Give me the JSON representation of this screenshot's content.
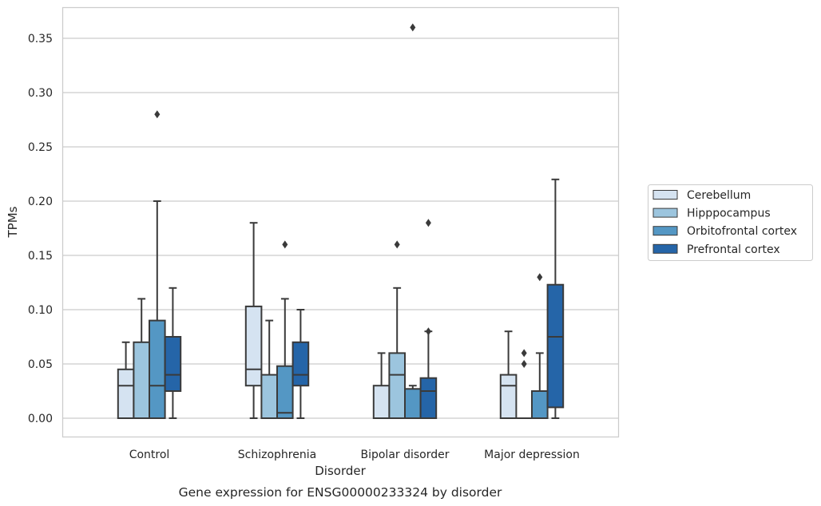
{
  "caption": "Gene expression for ENSG00000233324 by disorder",
  "chart_data": {
    "type": "boxplot",
    "xlabel": "Disorder",
    "ylabel": "TPMs",
    "ylim": [
      -0.018,
      0.378
    ],
    "yticks": [
      0.0,
      0.05,
      0.1,
      0.15,
      0.2,
      0.25,
      0.3,
      0.35
    ],
    "ytick_labels": [
      "0.00",
      "0.05",
      "0.10",
      "0.15",
      "0.20",
      "0.25",
      "0.30",
      "0.35"
    ],
    "grid": "horizontal",
    "legend_position": "right",
    "categories": [
      "Control",
      "Schizophrenia",
      "Bipolar disorder",
      "Major depression"
    ],
    "series": [
      {
        "name": "Cerebellum",
        "color": "#d5e3f1",
        "boxes": [
          {
            "whislo": 0.0,
            "q1": 0.0,
            "med": 0.03,
            "q3": 0.045,
            "whishi": 0.07,
            "fliers": []
          },
          {
            "whislo": 0.0,
            "q1": 0.03,
            "med": 0.045,
            "q3": 0.103,
            "whishi": 0.18,
            "fliers": []
          },
          {
            "whislo": 0.0,
            "q1": 0.0,
            "med": 0.0,
            "q3": 0.03,
            "whishi": 0.06,
            "fliers": []
          },
          {
            "whislo": 0.0,
            "q1": 0.0,
            "med": 0.03,
            "q3": 0.04,
            "whishi": 0.08,
            "fliers": []
          }
        ]
      },
      {
        "name": "Hipppocampus",
        "color": "#9cc5de",
        "boxes": [
          {
            "whislo": 0.0,
            "q1": 0.0,
            "med": 0.0,
            "q3": 0.07,
            "whishi": 0.11,
            "fliers": []
          },
          {
            "whislo": 0.0,
            "q1": 0.0,
            "med": 0.0,
            "q3": 0.04,
            "whishi": 0.09,
            "fliers": []
          },
          {
            "whislo": 0.0,
            "q1": 0.0,
            "med": 0.04,
            "q3": 0.06,
            "whishi": 0.12,
            "fliers": [
              0.16
            ]
          },
          {
            "whislo": 0.0,
            "q1": 0.0,
            "med": 0.0,
            "q3": 0.0,
            "whishi": 0.0,
            "fliers": [
              0.05,
              0.06
            ]
          }
        ]
      },
      {
        "name": "Orbitofrontal cortex",
        "color": "#5497c4",
        "boxes": [
          {
            "whislo": 0.0,
            "q1": 0.0,
            "med": 0.03,
            "q3": 0.09,
            "whishi": 0.2,
            "fliers": [
              0.28
            ]
          },
          {
            "whislo": 0.0,
            "q1": 0.0,
            "med": 0.005,
            "q3": 0.048,
            "whishi": 0.11,
            "fliers": [
              0.16
            ]
          },
          {
            "whislo": 0.0,
            "q1": 0.0,
            "med": 0.0,
            "q3": 0.027,
            "whishi": 0.03,
            "fliers": [
              0.36
            ]
          },
          {
            "whislo": 0.0,
            "q1": 0.0,
            "med": 0.0,
            "q3": 0.025,
            "whishi": 0.06,
            "fliers": [
              0.13
            ]
          }
        ]
      },
      {
        "name": "Prefrontal cortex",
        "color": "#2565a8",
        "boxes": [
          {
            "whislo": 0.0,
            "q1": 0.025,
            "med": 0.04,
            "q3": 0.075,
            "whishi": 0.12,
            "fliers": []
          },
          {
            "whislo": 0.0,
            "q1": 0.03,
            "med": 0.04,
            "q3": 0.07,
            "whishi": 0.1,
            "fliers": []
          },
          {
            "whislo": 0.0,
            "q1": 0.0,
            "med": 0.025,
            "q3": 0.037,
            "whishi": 0.08,
            "fliers": [
              0.08,
              0.18
            ]
          },
          {
            "whislo": 0.0,
            "q1": 0.01,
            "med": 0.075,
            "q3": 0.123,
            "whishi": 0.22,
            "fliers": []
          }
        ]
      }
    ]
  }
}
